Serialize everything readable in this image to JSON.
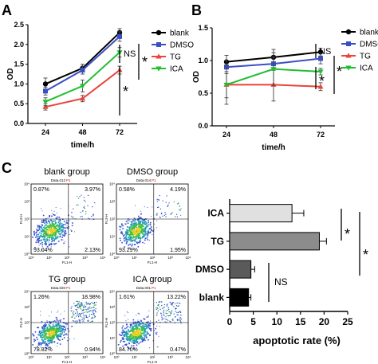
{
  "panels": [
    "A",
    "B",
    "C"
  ],
  "chart_data": [
    {
      "id": "A",
      "type": "line",
      "xlabel": "time/h",
      "ylabel": "OD",
      "categories": [
        "24",
        "48",
        "72"
      ],
      "ylim": [
        0,
        2.5
      ],
      "yticks": [
        "0.0",
        "0.5",
        "1.0",
        "1.5",
        "2.0",
        "2.5"
      ],
      "series": [
        {
          "name": "blank",
          "color": "#000000",
          "marker": "circle",
          "values": [
            1.0,
            1.4,
            2.3
          ],
          "err": [
            0.15,
            0.1,
            0.1
          ]
        },
        {
          "name": "DMSO",
          "color": "#3a4fc4",
          "marker": "square",
          "values": [
            0.82,
            1.35,
            2.2
          ],
          "err": [
            0.1,
            0.1,
            0.12
          ]
        },
        {
          "name": "TG",
          "color": "#e8453c",
          "marker": "triangle-up",
          "values": [
            0.42,
            0.63,
            1.35
          ],
          "err": [
            0.08,
            0.08,
            0.1
          ]
        },
        {
          "name": "ICA",
          "color": "#1fbf30",
          "marker": "triangle-down",
          "values": [
            0.55,
            0.95,
            1.8
          ],
          "err": [
            0.1,
            0.15,
            0.12
          ]
        }
      ],
      "annotations": [
        "NS",
        "*",
        "*"
      ]
    },
    {
      "id": "B",
      "type": "line",
      "xlabel": "time/h",
      "ylabel": "OD",
      "categories": [
        "24",
        "48",
        "72"
      ],
      "ylim": [
        0,
        1.5
      ],
      "yticks": [
        "0.0",
        "0.5",
        "1.0",
        "1.5"
      ],
      "series": [
        {
          "name": "blank",
          "color": "#000000",
          "marker": "circle",
          "values": [
            0.98,
            1.05,
            1.13
          ],
          "err": [
            0.1,
            0.12,
            0.06
          ]
        },
        {
          "name": "DMSO",
          "color": "#3a4fc4",
          "marker": "square",
          "values": [
            0.9,
            0.95,
            1.03
          ],
          "err": [
            0.1,
            0.1,
            0.08
          ]
        },
        {
          "name": "TG",
          "color": "#e8453c",
          "marker": "triangle-up",
          "values": [
            0.63,
            0.63,
            0.6
          ],
          "err": [
            0.3,
            0.25,
            0.06
          ]
        },
        {
          "name": "ICA",
          "color": "#1fbf30",
          "marker": "triangle-down",
          "values": [
            0.63,
            0.87,
            0.83
          ],
          "err": [
            0.2,
            0.25,
            0.05
          ]
        }
      ],
      "annotations": [
        "NS",
        "*",
        "*"
      ]
    },
    {
      "id": "C-bar",
      "type": "bar",
      "orientation": "horizontal",
      "xlabel": "apoptotic rate (%)",
      "categories": [
        "ICA",
        "TG",
        "DMSO",
        "blank"
      ],
      "values": [
        13.2,
        19.0,
        4.5,
        4.0
      ],
      "err": [
        2.5,
        1.5,
        0.8,
        0.5
      ],
      "colors": [
        "#e0e0e0",
        "#8c8c8c",
        "#5a5a5a",
        "#000000"
      ],
      "xlim": [
        0,
        25
      ],
      "xticks": [
        "0",
        "5",
        "10",
        "15",
        "20",
        "25"
      ],
      "annotations": [
        "*",
        "*",
        "NS"
      ]
    }
  ],
  "flow": {
    "panels": [
      {
        "title": "blank group",
        "data": "Data.012",
        "gate": "P1",
        "q": [
          "0.87%",
          "3.97%",
          "93.04%",
          "2.13%"
        ]
      },
      {
        "title": "DMSO group",
        "data": "Data.014",
        "gate": "P1",
        "q": [
          "0.58%",
          "4.19%",
          "93.29%",
          "1.95%"
        ]
      },
      {
        "title": "TG group",
        "data": "Data.020",
        "gate": "P1",
        "q": [
          "1.26%",
          "18.98%",
          "78.82%",
          "0.94%"
        ]
      },
      {
        "title": "ICA group",
        "data": "Data.001",
        "gate": "P1",
        "q": [
          "1.61%",
          "13.22%",
          "84.70%",
          "0.47%"
        ]
      }
    ],
    "xaxis": "FL1-H",
    "yaxis": "FL3-H",
    "ticks": [
      "10⁰",
      "10¹",
      "10²",
      "10³",
      "10⁴"
    ]
  }
}
